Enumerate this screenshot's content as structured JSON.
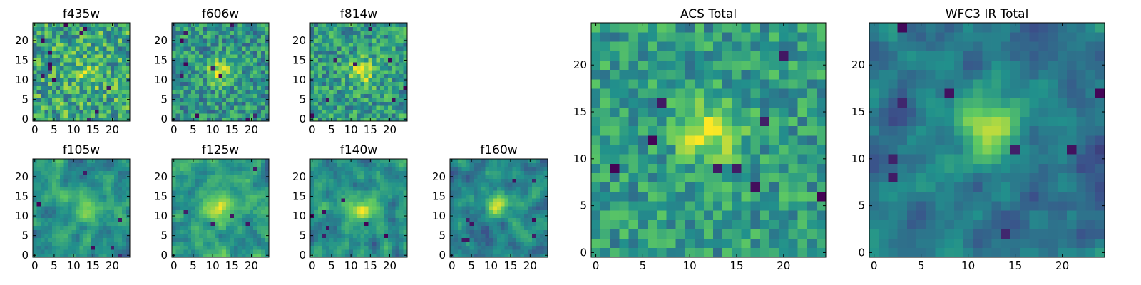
{
  "figure": {
    "background": "#ffffff"
  },
  "colormap": {
    "name": "viridis",
    "stops": [
      "#440154",
      "#3b528b",
      "#21918c",
      "#5ec962",
      "#fde725"
    ]
  },
  "chart_data": [
    {
      "id": "f435w",
      "type": "heatmap",
      "title": "f435w",
      "grid_size": 25,
      "xlim": [
        0,
        24
      ],
      "ylim": [
        0,
        24
      ],
      "xticks": [
        0,
        5,
        10,
        15,
        20
      ],
      "yticks": [
        0,
        5,
        10,
        15,
        20
      ],
      "peak": [
        13,
        12
      ],
      "blob_strength": 0.15,
      "blob_sigma": 3.0,
      "noise": 0.55,
      "base": 0.6,
      "dark_pixels": 12,
      "seed": 11
    },
    {
      "id": "f606w",
      "type": "heatmap",
      "title": "f606w",
      "grid_size": 25,
      "xlim": [
        0,
        24
      ],
      "ylim": [
        0,
        24
      ],
      "xticks": [
        0,
        5,
        10,
        15,
        20
      ],
      "yticks": [
        0,
        5,
        10,
        15,
        20
      ],
      "peak": [
        12,
        12
      ],
      "blob_strength": 0.45,
      "blob_sigma": 2.2,
      "noise": 0.45,
      "base": 0.52,
      "dark_pixels": 10,
      "seed": 23
    },
    {
      "id": "f814w",
      "type": "heatmap",
      "title": "f814w",
      "grid_size": 25,
      "xlim": [
        0,
        24
      ],
      "ylim": [
        0,
        24
      ],
      "xticks": [
        0,
        5,
        10,
        15,
        20
      ],
      "yticks": [
        0,
        5,
        10,
        15,
        20
      ],
      "peak": [
        13,
        12
      ],
      "blob_strength": 0.35,
      "blob_sigma": 2.4,
      "noise": 0.45,
      "base": 0.55,
      "dark_pixels": 8,
      "seed": 37
    },
    {
      "id": "f105w",
      "type": "heatmap",
      "title": "f105w",
      "grid_size": 25,
      "xlim": [
        0,
        24
      ],
      "ylim": [
        0,
        24
      ],
      "xticks": [
        0,
        5,
        10,
        15,
        20
      ],
      "yticks": [
        0,
        5,
        10,
        15,
        20
      ],
      "peak": [
        14,
        12
      ],
      "blob_strength": 0.35,
      "blob_sigma": 2.6,
      "noise": 0.4,
      "base": 0.5,
      "dark_pixels": 6,
      "seed": 41,
      "smooth": true
    },
    {
      "id": "f125w",
      "type": "heatmap",
      "title": "f125w",
      "grid_size": 25,
      "xlim": [
        0,
        24
      ],
      "ylim": [
        0,
        24
      ],
      "xticks": [
        0,
        5,
        10,
        15,
        20
      ],
      "yticks": [
        0,
        5,
        10,
        15,
        20
      ],
      "peak": [
        12,
        12
      ],
      "blob_strength": 0.3,
      "blob_sigma": 3.0,
      "noise": 0.4,
      "base": 0.55,
      "dark_pixels": 5,
      "seed": 53,
      "smooth": true
    },
    {
      "id": "f140w",
      "type": "heatmap",
      "title": "f140w",
      "grid_size": 25,
      "xlim": [
        0,
        24
      ],
      "ylim": [
        0,
        24
      ],
      "xticks": [
        0,
        5,
        10,
        15,
        20
      ],
      "yticks": [
        0,
        5,
        10,
        15,
        20
      ],
      "peak": [
        13,
        12
      ],
      "blob_strength": 0.35,
      "blob_sigma": 2.5,
      "noise": 0.42,
      "base": 0.5,
      "dark_pixels": 7,
      "seed": 67,
      "smooth": true
    },
    {
      "id": "f160w",
      "type": "heatmap",
      "title": "f160w",
      "grid_size": 25,
      "xlim": [
        0,
        24
      ],
      "ylim": [
        0,
        24
      ],
      "xticks": [
        0,
        5,
        10,
        15,
        20
      ],
      "yticks": [
        0,
        5,
        10,
        15,
        20
      ],
      "peak": [
        12,
        13
      ],
      "blob_strength": 0.55,
      "blob_sigma": 2.0,
      "noise": 0.4,
      "base": 0.45,
      "dark_pixels": 8,
      "seed": 79,
      "smooth": true
    },
    {
      "id": "acs_total",
      "type": "heatmap",
      "title": "ACS Total",
      "grid_size": 25,
      "xlim": [
        0,
        24
      ],
      "ylim": [
        0,
        24
      ],
      "xticks": [
        0,
        5,
        10,
        15,
        20
      ],
      "yticks": [
        0,
        5,
        10,
        15,
        20
      ],
      "peak": [
        12,
        13
      ],
      "blob_strength": 0.4,
      "blob_sigma": 2.3,
      "noise": 0.38,
      "base": 0.55,
      "dark_pixels": 9,
      "seed": 97
    },
    {
      "id": "wfc3_ir_total",
      "type": "heatmap",
      "title": "WFC3 IR Total",
      "grid_size": 25,
      "xlim": [
        0,
        24
      ],
      "ylim": [
        0,
        24
      ],
      "xticks": [
        0,
        5,
        10,
        15,
        20
      ],
      "yticks": [
        0,
        5,
        10,
        15,
        20
      ],
      "peak": [
        12,
        13
      ],
      "blob_strength": 0.55,
      "blob_sigma": 2.3,
      "noise": 0.35,
      "base": 0.4,
      "dark_pixels": 10,
      "seed": 113,
      "smooth": true
    }
  ]
}
